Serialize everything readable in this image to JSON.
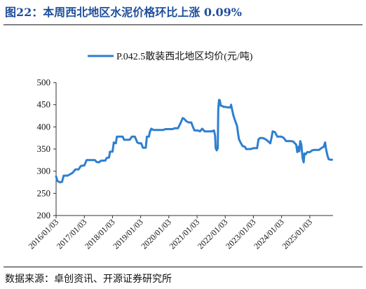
{
  "figure": {
    "title": "图22：本周西北地区水泥价格环比上涨 0.09%",
    "source": "数据来源：卓创资讯、开源证券研究所"
  },
  "chart_data": {
    "type": "line",
    "title": "",
    "xlabel": "",
    "ylabel": "",
    "ylim": [
      200,
      500
    ],
    "yticks": [
      200,
      250,
      300,
      350,
      400,
      450,
      500
    ],
    "xlim": [
      "2016-01-03",
      "2025-10-31"
    ],
    "xticks": [
      "2016/01/03",
      "2017/01/03",
      "2018/01/03",
      "2019/01/03",
      "2020/01/03",
      "2021/01/03",
      "2022/01/03",
      "2023/01/03",
      "2024/01/03",
      "2025/01/03"
    ],
    "legend_position": "top-center",
    "grid": false,
    "colors": {
      "line": "#2e7fd0"
    },
    "series": [
      {
        "name": "P.042.5散装西北地区均价(元/吨)",
        "points": [
          [
            "2016-01-03",
            288
          ],
          [
            "2016-01-20",
            278
          ],
          [
            "2016-02-20",
            275
          ],
          [
            "2016-03-20",
            276
          ],
          [
            "2016-04-10",
            290
          ],
          [
            "2016-06-01",
            290
          ],
          [
            "2016-08-01",
            296
          ],
          [
            "2016-09-10",
            304
          ],
          [
            "2016-10-20",
            304
          ],
          [
            "2016-11-20",
            312
          ],
          [
            "2017-01-03",
            313
          ],
          [
            "2017-02-01",
            325
          ],
          [
            "2017-05-20",
            325
          ],
          [
            "2017-06-10",
            321
          ],
          [
            "2017-07-10",
            320
          ],
          [
            "2017-08-10",
            324
          ],
          [
            "2017-10-01",
            324
          ],
          [
            "2017-10-20",
            330
          ],
          [
            "2017-11-20",
            331
          ],
          [
            "2017-12-01",
            344
          ],
          [
            "2018-01-03",
            344
          ],
          [
            "2018-01-20",
            365
          ],
          [
            "2018-02-15",
            363
          ],
          [
            "2018-03-01",
            378
          ],
          [
            "2018-05-15",
            378
          ],
          [
            "2018-06-01",
            371
          ],
          [
            "2018-08-15",
            371
          ],
          [
            "2018-09-10",
            378
          ],
          [
            "2018-10-20",
            378
          ],
          [
            "2018-11-20",
            365
          ],
          [
            "2018-12-10",
            363
          ],
          [
            "2019-01-10",
            363
          ],
          [
            "2019-02-01",
            353
          ],
          [
            "2019-03-10",
            353
          ],
          [
            "2019-03-25",
            378
          ],
          [
            "2019-04-20",
            378
          ],
          [
            "2019-05-01",
            388
          ],
          [
            "2019-05-20",
            396
          ],
          [
            "2019-06-20",
            393
          ],
          [
            "2019-07-20",
            393
          ],
          [
            "2019-09-01",
            393
          ],
          [
            "2019-10-20",
            393
          ],
          [
            "2019-11-20",
            395
          ],
          [
            "2020-01-03",
            395
          ],
          [
            "2020-02-20",
            395
          ],
          [
            "2020-03-20",
            397
          ],
          [
            "2020-05-01",
            397
          ],
          [
            "2020-06-01",
            408
          ],
          [
            "2020-07-01",
            420
          ],
          [
            "2020-07-20",
            418
          ],
          [
            "2020-08-15",
            413
          ],
          [
            "2020-09-15",
            410
          ],
          [
            "2020-10-20",
            410
          ],
          [
            "2020-11-10",
            400
          ],
          [
            "2020-12-01",
            392
          ],
          [
            "2021-01-10",
            392
          ],
          [
            "2021-02-10",
            390
          ],
          [
            "2021-03-10",
            396
          ],
          [
            "2021-04-10",
            390
          ],
          [
            "2021-06-01",
            390
          ],
          [
            "2021-07-10",
            390
          ],
          [
            "2021-08-10",
            392
          ],
          [
            "2021-08-25",
            380
          ],
          [
            "2021-09-01",
            352
          ],
          [
            "2021-09-15",
            347
          ],
          [
            "2021-09-28",
            352
          ],
          [
            "2021-10-05",
            440
          ],
          [
            "2021-10-15",
            461
          ],
          [
            "2021-10-25",
            460
          ],
          [
            "2021-11-05",
            448
          ],
          [
            "2021-11-25",
            447
          ],
          [
            "2021-12-15",
            445
          ],
          [
            "2022-01-03",
            445
          ],
          [
            "2022-02-10",
            444
          ],
          [
            "2022-03-10",
            444
          ],
          [
            "2022-03-20",
            450
          ],
          [
            "2022-04-01",
            440
          ],
          [
            "2022-04-20",
            425
          ],
          [
            "2022-05-15",
            412
          ],
          [
            "2022-06-05",
            402
          ],
          [
            "2022-06-20",
            383
          ],
          [
            "2022-07-01",
            372
          ],
          [
            "2022-07-20",
            365
          ],
          [
            "2022-08-15",
            357
          ],
          [
            "2022-09-15",
            355
          ],
          [
            "2022-10-01",
            350
          ],
          [
            "2022-12-01",
            350
          ],
          [
            "2023-01-03",
            352
          ],
          [
            "2023-02-20",
            352
          ],
          [
            "2023-03-10",
            372
          ],
          [
            "2023-04-01",
            375
          ],
          [
            "2023-05-01",
            375
          ],
          [
            "2023-06-01",
            373
          ],
          [
            "2023-07-10",
            368
          ],
          [
            "2023-08-10",
            363
          ],
          [
            "2023-08-25",
            375
          ],
          [
            "2023-09-10",
            390
          ],
          [
            "2023-10-10",
            388
          ],
          [
            "2023-11-10",
            378
          ],
          [
            "2023-12-01",
            378
          ],
          [
            "2024-01-03",
            378
          ],
          [
            "2024-02-01",
            375
          ],
          [
            "2024-03-01",
            368
          ],
          [
            "2024-04-01",
            368
          ],
          [
            "2024-05-01",
            368
          ],
          [
            "2024-06-01",
            367
          ],
          [
            "2024-07-10",
            360
          ],
          [
            "2024-07-25",
            343
          ],
          [
            "2024-08-05",
            355
          ],
          [
            "2024-08-20",
            345
          ],
          [
            "2024-09-01",
            368
          ],
          [
            "2024-09-15",
            360
          ],
          [
            "2024-10-01",
            330
          ],
          [
            "2024-10-15",
            320
          ],
          [
            "2024-10-25",
            340
          ],
          [
            "2024-11-10",
            338
          ],
          [
            "2024-12-01",
            343
          ],
          [
            "2025-01-03",
            343
          ],
          [
            "2025-02-01",
            347
          ],
          [
            "2025-03-01",
            348
          ],
          [
            "2025-05-01",
            348
          ],
          [
            "2025-06-01",
            352
          ],
          [
            "2025-07-01",
            355
          ],
          [
            "2025-07-20",
            365
          ],
          [
            "2025-08-01",
            350
          ],
          [
            "2025-08-20",
            335
          ],
          [
            "2025-09-05",
            327
          ],
          [
            "2025-09-25",
            326
          ],
          [
            "2025-10-17",
            326
          ]
        ]
      }
    ]
  }
}
